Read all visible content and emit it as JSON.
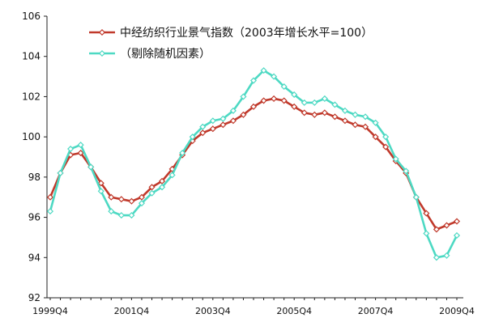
{
  "chart_data": {
    "type": "line",
    "title": "",
    "xlabel": "",
    "ylabel": "",
    "ylim": [
      92,
      106
    ],
    "yticks": [
      92,
      94,
      96,
      98,
      100,
      102,
      104,
      106
    ],
    "x_tick_labels": [
      "1999Q4",
      "2001Q4",
      "2003Q4",
      "2005Q4",
      "2007Q4",
      "2009Q4"
    ],
    "x_tick_indices": [
      0,
      8,
      16,
      24,
      32,
      40
    ],
    "x_count": 41,
    "grid": false,
    "legend_placement": "top",
    "series": [
      {
        "name": "中经纺织行业景气指数（2003年增长水平=100）",
        "color": "#c0392b",
        "marker": "diamond",
        "values": [
          97.0,
          98.2,
          99.1,
          99.2,
          98.5,
          97.7,
          97.0,
          96.9,
          96.8,
          97.0,
          97.5,
          97.8,
          98.4,
          99.1,
          99.8,
          100.2,
          100.4,
          100.6,
          100.8,
          101.1,
          101.5,
          101.8,
          101.9,
          101.8,
          101.5,
          101.2,
          101.1,
          101.2,
          101.0,
          100.8,
          100.6,
          100.5,
          100.0,
          99.5,
          98.8,
          98.2,
          97.0,
          96.2,
          95.4,
          95.6,
          95.8
        ]
      },
      {
        "name": "（剔除随机因素）",
        "color": "#4dd9c3",
        "marker": "diamond",
        "values": [
          96.3,
          98.2,
          99.4,
          99.6,
          98.5,
          97.3,
          96.3,
          96.1,
          96.1,
          96.7,
          97.2,
          97.5,
          98.1,
          99.2,
          100.0,
          100.5,
          100.8,
          100.9,
          101.3,
          102.0,
          102.8,
          103.3,
          103.0,
          102.5,
          102.1,
          101.7,
          101.7,
          101.9,
          101.6,
          101.3,
          101.1,
          101.0,
          100.7,
          100.0,
          98.9,
          98.3,
          97.0,
          95.2,
          94.0,
          94.1,
          95.1
        ]
      }
    ]
  }
}
